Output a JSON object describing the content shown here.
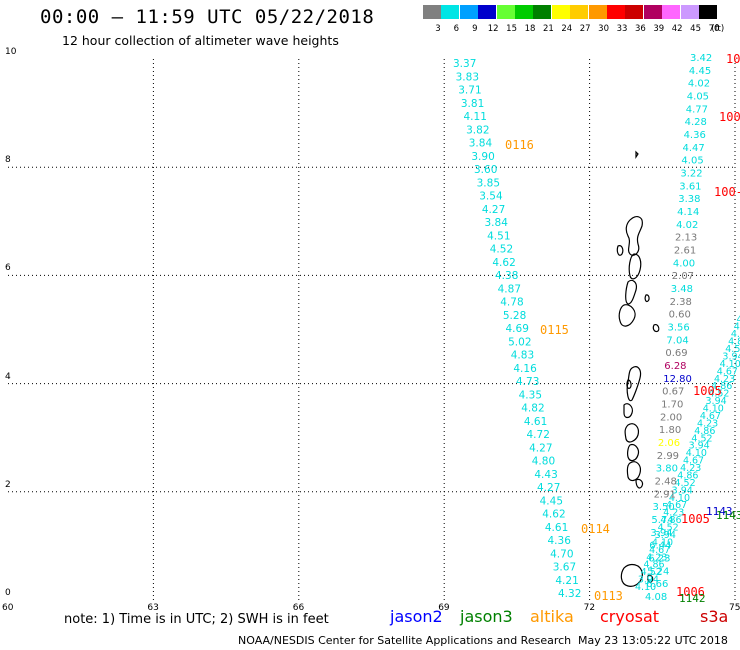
{
  "header": {
    "title": "00:00 – 11:59 UTC 05/22/2018",
    "subtitle": "12 hour collection of altimeter wave heights"
  },
  "legend": {
    "unit": "(ft)",
    "bins": [
      {
        "label": "3",
        "color": "#808080"
      },
      {
        "label": "6",
        "color": "#00e5e5"
      },
      {
        "label": "9",
        "color": "#00a0ff"
      },
      {
        "label": "12",
        "color": "#0000cc"
      },
      {
        "label": "15",
        "color": "#66ff33"
      },
      {
        "label": "18",
        "color": "#00cc00"
      },
      {
        "label": "21",
        "color": "#008000"
      },
      {
        "label": "24",
        "color": "#ffff00"
      },
      {
        "label": "27",
        "color": "#ffcc00"
      },
      {
        "label": "30",
        "color": "#ff9900"
      },
      {
        "label": "33",
        "color": "#ff0000"
      },
      {
        "label": "36",
        "color": "#cc0000"
      },
      {
        "label": "39",
        "color": "#b00060"
      },
      {
        "label": "42",
        "color": "#ff66ff"
      },
      {
        "label": "45",
        "color": "#cc99ff"
      },
      {
        "label": "70",
        "color": "#000000"
      }
    ]
  },
  "axes": {
    "x_ticks": [
      "60",
      "63",
      "66",
      "69",
      "72",
      "75"
    ],
    "y_ticks": [
      "0",
      "2",
      "4",
      "6",
      "8",
      "10"
    ]
  },
  "track_main": {
    "color": "#00dcdc",
    "values": [
      "3.37",
      "3.83",
      "3.71",
      "3.81",
      "4.11",
      "3.82",
      "3.84",
      "3.90",
      "3.60",
      "3.85",
      "3.54",
      "4.27",
      "3.84",
      "4.51",
      "4.52",
      "4.62",
      "4.38",
      "4.87",
      "4.78",
      "5.28",
      "4.69",
      "5.02",
      "4.83",
      "4.16",
      "4.73",
      "4.35",
      "4.82",
      "4.61",
      "4.72",
      "4.27",
      "4.80",
      "4.43",
      "4.27",
      "4.45",
      "4.62",
      "4.61",
      "4.36",
      "4.70",
      "3.67",
      "4.21",
      "4.32"
    ]
  },
  "track_east": {
    "color": "#00dcdc",
    "values": [
      "3.42",
      "4.45",
      "4.02",
      "4.05",
      "4.77",
      "4.28",
      "4.36",
      "4.47",
      "4.05",
      "3.22",
      "3.61",
      "3.38",
      "4.14",
      "4.02",
      "2.13",
      "2.61",
      "4.00",
      "2.07",
      "3.48",
      "2.38",
      "0.60",
      "3.56",
      "7.04",
      "0.69",
      "6.28",
      "12.80",
      "0.67",
      "1.70",
      "2.00",
      "1.80",
      "2.06",
      "2.99",
      "3.80",
      "2.48",
      "2.91",
      "3.50",
      "5.74",
      "3.94",
      "6.44",
      "6.23",
      "5.24",
      "6.66",
      "4.08"
    ]
  },
  "pass_times": {
    "orange": [
      "0116",
      "0115",
      "0114",
      "0113"
    ],
    "red": [
      "10",
      "100",
      "100-",
      "1005",
      "1005",
      "1006"
    ],
    "blue": [
      "1143"
    ],
    "green": [
      "1143",
      "1142"
    ]
  },
  "footer": {
    "note": "note: 1) Time is in UTC; 2) SWH is in feet",
    "satellites": [
      {
        "name": "jason2",
        "color": "#0000ff"
      },
      {
        "name": "jason3",
        "color": "#008000"
      },
      {
        "name": "altika",
        "color": "#ff9900"
      },
      {
        "name": "cryosat",
        "color": "#ff0000"
      },
      {
        "name": "s3a",
        "color": "#cc0000"
      }
    ],
    "credit": "NOAA/NESDIS Center for Satellite Applications and Research",
    "timestamp": "May 23 13:05:22 UTC 2018"
  }
}
